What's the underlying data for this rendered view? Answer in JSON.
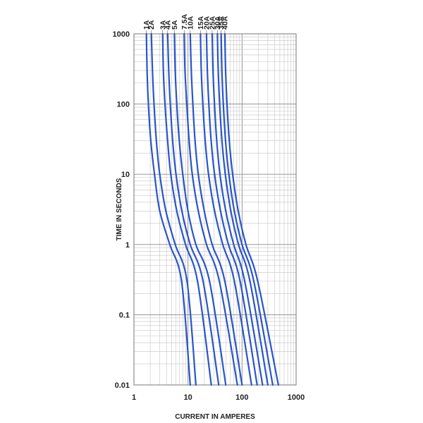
{
  "chart_data": {
    "type": "line",
    "xlabel": "CURRENT IN AMPERES",
    "ylabel": "TIME IN SECONDS",
    "x_scale": "log",
    "y_scale": "log",
    "xlim": [
      1,
      1000
    ],
    "ylim": [
      0.01,
      1000
    ],
    "x_ticks": [
      "1",
      "10",
      "100",
      "1000"
    ],
    "y_ticks": [
      "1000",
      "100",
      "10",
      "1",
      "0.1",
      "0.01"
    ],
    "grid": true,
    "legend": "curve-top labels",
    "line_color": "#2a55c9",
    "series": [
      {
        "name": "1A",
        "x": [
          1.7,
          1.75,
          1.85,
          2.05,
          2.4,
          3.0,
          4.6,
          7.6,
          11.0
        ],
        "y": [
          1000,
          300,
          100,
          30,
          10,
          3,
          1,
          0.3,
          0.01
        ]
      },
      {
        "name": "2A",
        "x": [
          2.1,
          2.2,
          2.35,
          2.6,
          3.0,
          3.9,
          5.8,
          9.6,
          14.0
        ],
        "y": [
          1000,
          300,
          100,
          30,
          10,
          3,
          1,
          0.3,
          0.01
        ]
      },
      {
        "name": "3A",
        "x": [
          3.4,
          3.5,
          3.75,
          4.2,
          4.8,
          6.2,
          9.0,
          15.0,
          27.0
        ],
        "y": [
          1000,
          300,
          100,
          30,
          10,
          3,
          1,
          0.3,
          0.01
        ]
      },
      {
        "name": "4A",
        "x": [
          4.2,
          4.4,
          4.7,
          5.2,
          6.0,
          7.7,
          11.0,
          19.0,
          37.0
        ],
        "y": [
          1000,
          300,
          100,
          30,
          10,
          3,
          1,
          0.3,
          0.01
        ]
      },
      {
        "name": "5A",
        "x": [
          5.6,
          5.8,
          6.2,
          6.9,
          8.0,
          10.0,
          14.0,
          25.0,
          50.0
        ],
        "y": [
          1000,
          300,
          100,
          30,
          10,
          3,
          1,
          0.3,
          0.01
        ]
      },
      {
        "name": "7.5A",
        "x": [
          8.5,
          8.8,
          9.5,
          10.5,
          12.0,
          15.5,
          22.0,
          38.0,
          82.0
        ],
        "y": [
          1000,
          300,
          100,
          30,
          10,
          3,
          1,
          0.3,
          0.01
        ]
      },
      {
        "name": "10A",
        "x": [
          11.0,
          11.5,
          12.3,
          13.5,
          15.5,
          20.0,
          28.0,
          48.0,
          100.0
        ],
        "y": [
          1000,
          300,
          100,
          30,
          10,
          3,
          1,
          0.3,
          0.01
        ]
      },
      {
        "name": "15A",
        "x": [
          17.0,
          17.6,
          18.8,
          20.8,
          24.0,
          31.0,
          44.0,
          72.0,
          150.0
        ],
        "y": [
          1000,
          300,
          100,
          30,
          10,
          3,
          1,
          0.3,
          0.01
        ]
      },
      {
        "name": "20A",
        "x": [
          22.0,
          22.8,
          24.3,
          26.8,
          31.0,
          40.0,
          56.0,
          92.0,
          190.0
        ],
        "y": [
          1000,
          300,
          100,
          30,
          10,
          3,
          1,
          0.3,
          0.01
        ]
      },
      {
        "name": "25A",
        "x": [
          28.0,
          29.0,
          30.9,
          34.0,
          39.0,
          50.0,
          70.0,
          112.0,
          240.0
        ],
        "y": [
          1000,
          300,
          100,
          30,
          10,
          3,
          1,
          0.3,
          0.01
        ]
      },
      {
        "name": "30A",
        "x": [
          35.0,
          36.2,
          38.5,
          42.5,
          49.0,
          62.0,
          86.0,
          140.0,
          300.0
        ],
        "y": [
          1000,
          300,
          100,
          30,
          10,
          3,
          1,
          0.3,
          0.01
        ]
      },
      {
        "name": "35A",
        "x": [
          41.0,
          42.4,
          45.0,
          49.5,
          57.0,
          72.0,
          100.0,
          165.0,
          370.0
        ],
        "y": [
          1000,
          300,
          100,
          30,
          10,
          3,
          1,
          0.3,
          0.01
        ]
      },
      {
        "name": "40A",
        "x": [
          48.0,
          49.6,
          52.7,
          58.0,
          67.0,
          85.0,
          118.0,
          195.0,
          470.0
        ],
        "y": [
          1000,
          300,
          100,
          30,
          10,
          3,
          1,
          0.3,
          0.01
        ]
      }
    ]
  }
}
